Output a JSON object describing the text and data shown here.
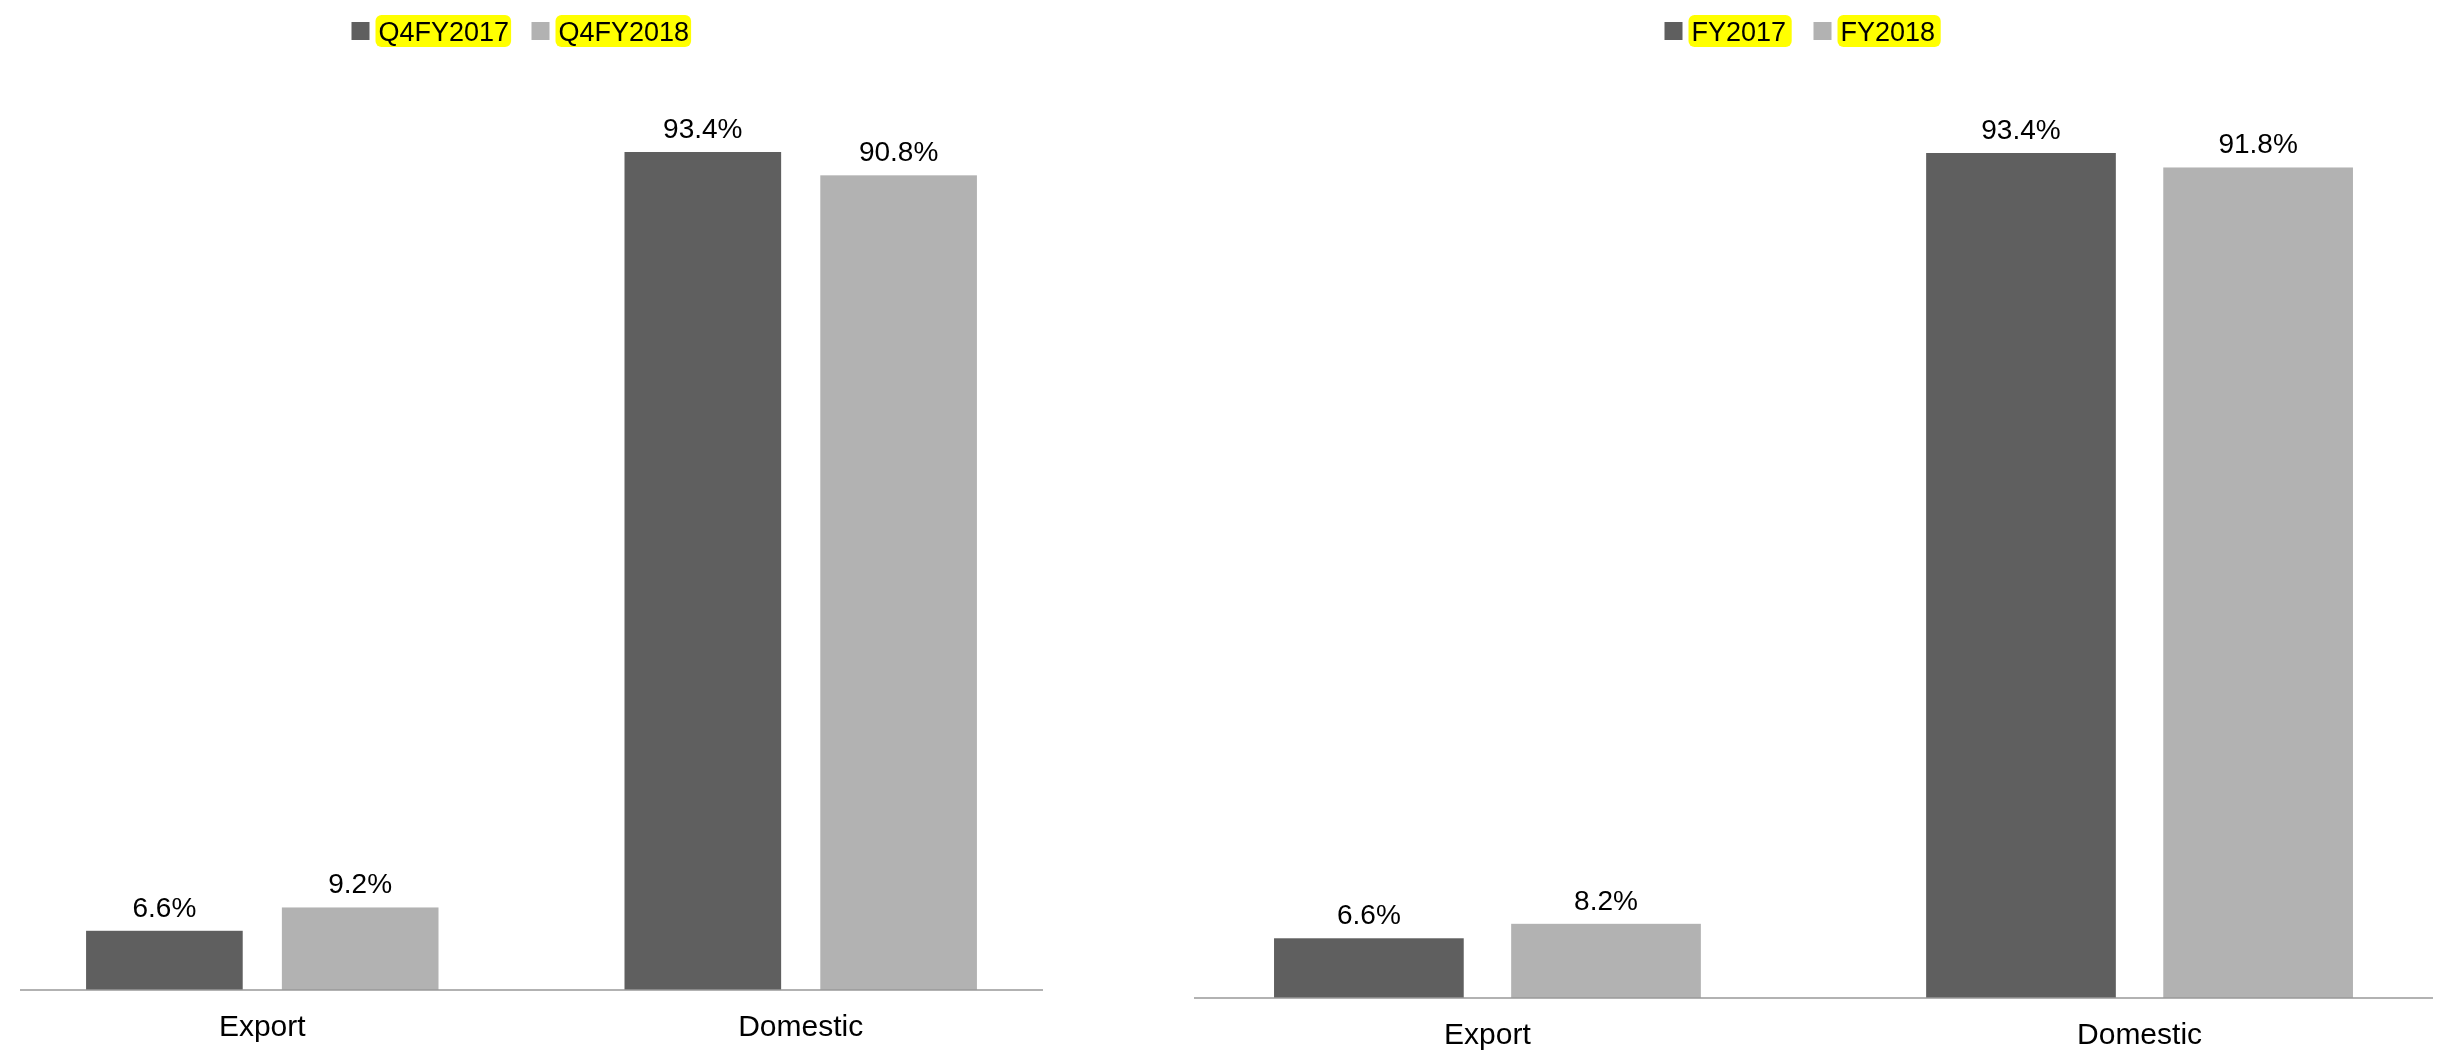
{
  "chart_data": [
    {
      "type": "bar",
      "categories": [
        "Export",
        "Domestic"
      ],
      "series": [
        {
          "name": "Q4FY2017",
          "color": "#5f5f5f",
          "values": [
            6.6,
            93.4
          ],
          "value_labels": [
            "6.6%",
            "93.4%"
          ]
        },
        {
          "name": "Q4FY2018",
          "color": "#b2b2b2",
          "values": [
            9.2,
            90.8
          ],
          "value_labels": [
            "9.2%",
            "90.8%"
          ]
        }
      ],
      "legend": "top"
    },
    {
      "type": "bar",
      "categories": [
        "Export",
        "Domestic"
      ],
      "series": [
        {
          "name": "FY2017",
          "color": "#5f5f5f",
          "values": [
            6.6,
            93.4
          ],
          "value_labels": [
            "6.6%",
            "93.4%"
          ]
        },
        {
          "name": "FY2018",
          "color": "#b2b2b2",
          "values": [
            8.2,
            91.8
          ],
          "value_labels": [
            "8.2%",
            "91.8%"
          ]
        }
      ],
      "legend": "top"
    }
  ]
}
